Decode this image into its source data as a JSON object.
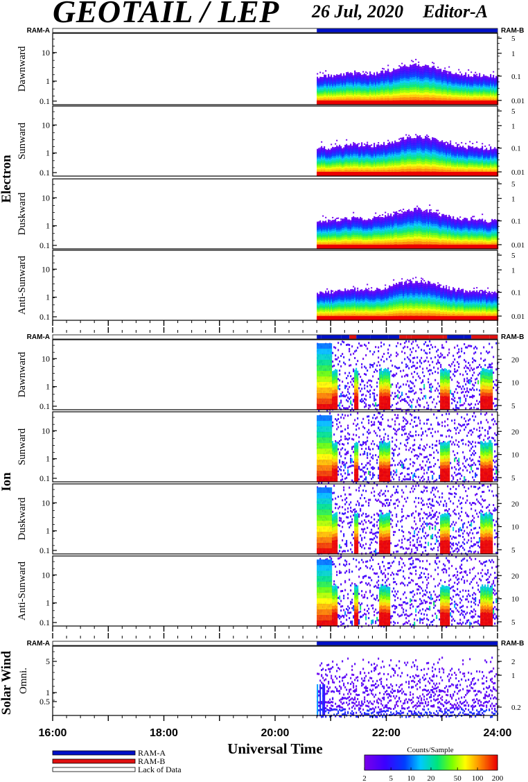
{
  "header": {
    "title": "GEOTAIL / LEP",
    "date": "26 Jul, 2020",
    "editor": "Editor-A"
  },
  "chart_data": {
    "type": "heatmap",
    "x_axis": {
      "label": "Universal Time",
      "range": [
        "16:00",
        "24:00"
      ],
      "tick_labels": [
        "16:00",
        "18:00",
        "20:00",
        "22:00",
        "24:00"
      ],
      "data_start": "20:45"
    },
    "groups": [
      {
        "name": "Electron",
        "ram_labels": [
          "RAM-A",
          "RAM-B"
        ],
        "ram_bar_color": "blue",
        "panels": [
          {
            "name": "Dawnward",
            "left_ticks": [
              "10",
              "1",
              "0.1"
            ],
            "right_ticks": [
              "5",
              "1",
              "0.1",
              "0.01"
            ]
          },
          {
            "name": "Sunward",
            "left_ticks": [
              "10",
              "1",
              "0.1"
            ],
            "right_ticks": [
              "5",
              "1",
              "0.1",
              "0.01"
            ]
          },
          {
            "name": "Duskward",
            "left_ticks": [
              "10",
              "1",
              "0.1"
            ],
            "right_ticks": [
              "5",
              "1",
              "0.1",
              "0.01"
            ]
          },
          {
            "name": "Anti-Sunward",
            "left_ticks": [
              "10",
              "1",
              "0.1"
            ],
            "right_ticks": [
              "5",
              "1",
              "0.1",
              "0.01"
            ]
          }
        ]
      },
      {
        "name": "Ion",
        "ram_labels": [
          "RAM-A",
          "RAM-B"
        ],
        "ram_bar_color": "mixed",
        "panels": [
          {
            "name": "Dawnward",
            "left_ticks": [
              "10",
              "1",
              "0.1"
            ],
            "right_ticks": [
              "20",
              "10",
              "5"
            ]
          },
          {
            "name": "Sunward",
            "left_ticks": [
              "10",
              "1",
              "0.1"
            ],
            "right_ticks": [
              "20",
              "10",
              "5"
            ]
          },
          {
            "name": "Duskward",
            "left_ticks": [
              "10",
              "1",
              "0.1"
            ],
            "right_ticks": [
              "20",
              "10",
              "5"
            ]
          },
          {
            "name": "Anti-Sunward",
            "left_ticks": [
              "10",
              "1",
              "0.1"
            ],
            "right_ticks": [
              "20",
              "10",
              "5"
            ]
          }
        ]
      },
      {
        "name": "Solar Wind",
        "ram_labels": [
          "RAM-A",
          "RAM-B"
        ],
        "ram_bar_color": "blue",
        "panels": [
          {
            "name": "Omni.",
            "left_ticks": [
              "5",
              "1",
              "0.5"
            ],
            "right_ticks": [
              "2",
              "1",
              "0.2"
            ]
          }
        ]
      }
    ],
    "legend": {
      "items": [
        {
          "label": "RAM-A",
          "color": "#0010c8"
        },
        {
          "label": "RAM-B",
          "color": "#e01010"
        },
        {
          "label": "Lack of Data",
          "color": "#ffffff"
        }
      ]
    },
    "colorbar": {
      "title": "Counts/Sample",
      "tick_labels": [
        "2",
        "5",
        "10",
        "20",
        "50",
        "100",
        "200"
      ],
      "scale": "log",
      "range": [
        2,
        200
      ]
    }
  }
}
